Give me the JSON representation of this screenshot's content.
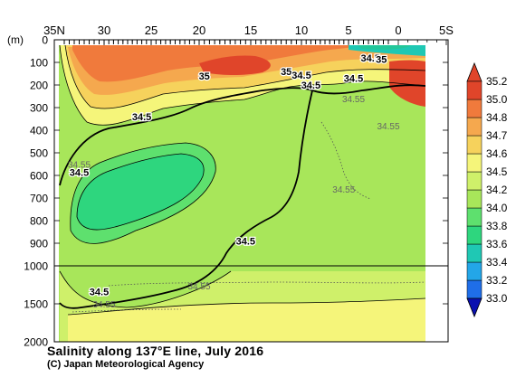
{
  "chart_data": {
    "type": "heatmap",
    "title": "Salinity along 137°E line, July 2016",
    "credit": "(C) Japan Meteorological Agency",
    "x_axis": {
      "tick_labels": [
        "35N",
        "30",
        "25",
        "20",
        "15",
        "10",
        "5",
        "0",
        "5S"
      ],
      "tick_values": [
        35,
        30,
        25,
        20,
        15,
        10,
        5,
        0,
        -5
      ],
      "range": [
        35,
        -5
      ]
    },
    "y_axis": {
      "unit_label": "(m)",
      "tick_labels": [
        "0",
        "100",
        "200",
        "300",
        "400",
        "500",
        "600",
        "700",
        "800",
        "900",
        "1000",
        "1500",
        "2000"
      ],
      "upper_range": [
        0,
        1000
      ],
      "lower_range": [
        1000,
        2000
      ],
      "break_depth": 1000
    },
    "colorbar": {
      "levels": [
        33.0,
        33.2,
        33.4,
        33.6,
        33.8,
        34.0,
        34.2,
        34.5,
        34.6,
        34.7,
        34.8,
        35.0,
        35.2
      ],
      "labels": [
        "33.0",
        "33.2",
        "33.4",
        "33.6",
        "33.8",
        "34.0",
        "34.2",
        "34.5",
        "34.6",
        "34.7",
        "34.8",
        "35.0",
        "35.2"
      ],
      "colors": [
        "#0a1cd8",
        "#1f6ee8",
        "#23a6e8",
        "#1fc8b4",
        "#2ed67e",
        "#5ee06e",
        "#a8e65a",
        "#cff06a",
        "#f5f57a",
        "#f6d25c",
        "#f5a84e",
        "#f07a3c",
        "#e0452a"
      ]
    },
    "contour_labels": [
      {
        "text": "35",
        "lat": 19.5,
        "depth": 160
      },
      {
        "text": "35",
        "lat": 11.5,
        "depth": 140
      },
      {
        "text": "34.5",
        "lat": 10.0,
        "depth": 155
      },
      {
        "text": "34.5",
        "lat": 9.0,
        "depth": 200
      },
      {
        "text": "34.5",
        "lat": 2.8,
        "depth": 80
      },
      {
        "text": "35",
        "lat": 1.7,
        "depth": 85
      },
      {
        "text": "34.5",
        "lat": 4.5,
        "depth": 170
      },
      {
        "text": "34.55",
        "lat": 4.5,
        "depth": 260
      },
      {
        "text": "34.5",
        "lat": 26.0,
        "depth": 340
      },
      {
        "text": "34.55",
        "lat": 1.0,
        "depth": 380
      },
      {
        "text": "34.55",
        "lat": 32.5,
        "depth": 550
      },
      {
        "text": "34.5",
        "lat": 32.5,
        "depth": 585
      },
      {
        "text": "34.55",
        "lat": 5.5,
        "depth": 660
      },
      {
        "text": "34.5",
        "lat": 15.5,
        "depth": 890
      },
      {
        "text": "34.55",
        "lat": 20.0,
        "depth": 1260
      },
      {
        "text": "34.5",
        "lat": 30.5,
        "depth": 1340
      },
      {
        "text": "34.55",
        "lat": 30.0,
        "depth": 1500
      }
    ]
  }
}
